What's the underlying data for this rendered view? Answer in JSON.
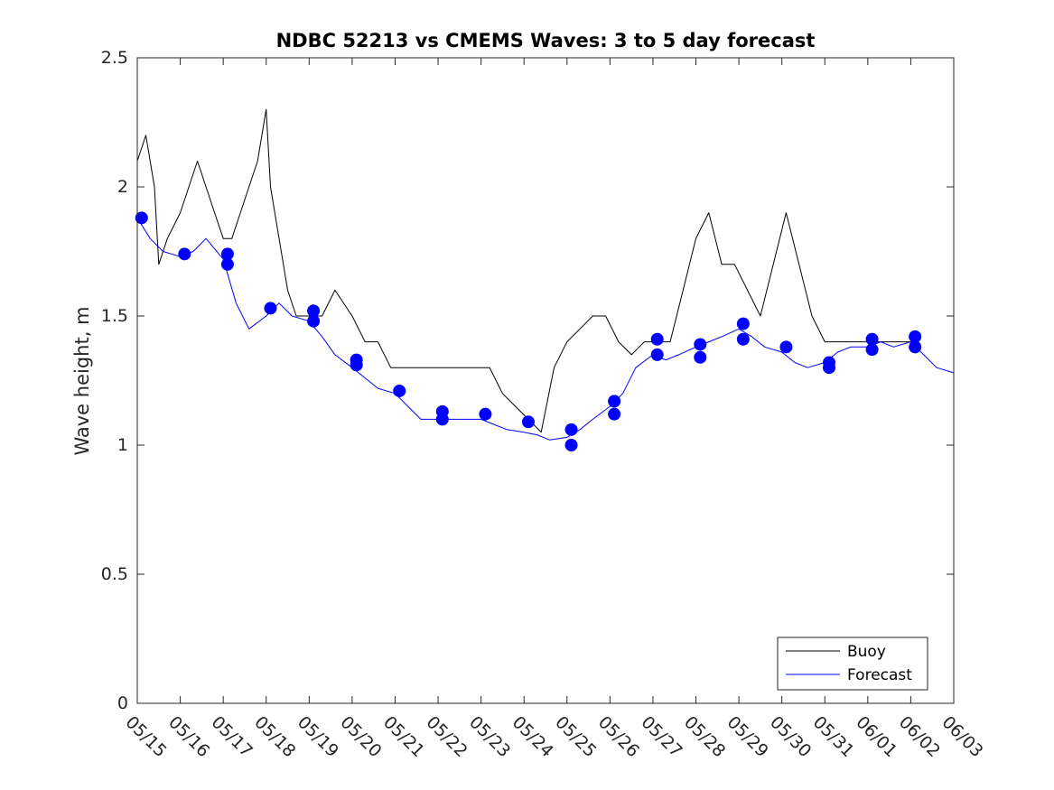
{
  "chart_data": {
    "type": "line",
    "title": "NDBC 52213 vs CMEMS Waves: 3 to 5 day forecast",
    "xlabel": "",
    "ylabel": "Wave height, m",
    "xlim": [
      0,
      19
    ],
    "ylim": [
      0,
      2.5
    ],
    "x_tick_labels": [
      "05/15",
      "05/16",
      "05/17",
      "05/18",
      "05/19",
      "05/20",
      "05/21",
      "05/22",
      "05/23",
      "05/24",
      "05/25",
      "05/26",
      "05/27",
      "05/28",
      "05/29",
      "05/30",
      "05/31",
      "06/01",
      "06/02",
      "06/03"
    ],
    "y_tick_labels": [
      "0",
      "0.5",
      "1",
      "1.5",
      "2",
      "2.5"
    ],
    "y_ticks": [
      0,
      0.5,
      1,
      1.5,
      2,
      2.5
    ],
    "grid": false,
    "legend": {
      "placement": "bottom-right",
      "entries": [
        {
          "label": "Buoy",
          "color": "#000000"
        },
        {
          "label": "Forecast",
          "color": "#0000ff"
        }
      ]
    },
    "series": [
      {
        "name": "Buoy",
        "color": "#000000",
        "x": [
          0,
          0.2,
          0.4,
          0.5,
          0.7,
          1.0,
          1.2,
          1.4,
          1.6,
          1.8,
          2.0,
          2.2,
          2.4,
          2.6,
          2.8,
          3.0,
          3.1,
          3.3,
          3.5,
          3.7,
          3.9,
          4.0,
          4.3,
          4.6,
          5.0,
          5.3,
          5.6,
          5.9,
          6.1,
          6.4,
          6.7,
          7.0,
          7.3,
          7.6,
          7.9,
          8.2,
          8.5,
          8.8,
          9.1,
          9.4,
          9.7,
          10.0,
          10.3,
          10.6,
          10.9,
          11.2,
          11.5,
          11.8,
          12.1,
          12.4,
          12.7,
          13.0,
          13.3,
          13.6,
          13.9,
          14.2,
          14.5,
          14.8,
          15.1,
          15.4,
          15.7,
          16.0,
          16.3,
          16.6,
          16.9,
          17.2,
          17.5,
          17.8,
          18.1
        ],
        "y": [
          2.1,
          2.2,
          2.0,
          1.7,
          1.8,
          1.9,
          2.0,
          2.1,
          2.0,
          1.9,
          1.8,
          1.8,
          1.9,
          2.0,
          2.1,
          2.3,
          2.0,
          1.8,
          1.6,
          1.5,
          1.5,
          1.5,
          1.5,
          1.6,
          1.5,
          1.4,
          1.4,
          1.3,
          1.3,
          1.3,
          1.3,
          1.3,
          1.3,
          1.3,
          1.3,
          1.3,
          1.2,
          1.15,
          1.1,
          1.05,
          1.3,
          1.4,
          1.45,
          1.5,
          1.5,
          1.4,
          1.35,
          1.4,
          1.4,
          1.4,
          1.6,
          1.8,
          1.9,
          1.7,
          1.7,
          1.6,
          1.5,
          1.7,
          1.9,
          1.7,
          1.5,
          1.4,
          1.4,
          1.4,
          1.4,
          1.4,
          1.4,
          1.4,
          1.4
        ]
      },
      {
        "name": "Forecast",
        "color": "#0000ff",
        "x": [
          0,
          0.3,
          0.6,
          1.0,
          1.3,
          1.6,
          2.0,
          2.3,
          2.6,
          3.0,
          3.3,
          3.6,
          4.0,
          4.3,
          4.6,
          5.0,
          5.3,
          5.6,
          6.0,
          6.3,
          6.6,
          7.0,
          7.3,
          7.6,
          8.0,
          8.3,
          8.6,
          9.0,
          9.3,
          9.6,
          10.0,
          10.3,
          10.6,
          11.0,
          11.3,
          11.6,
          12.0,
          12.3,
          12.6,
          13.0,
          13.3,
          13.6,
          14.0,
          14.3,
          14.6,
          15.0,
          15.3,
          15.6,
          16.0,
          16.3,
          16.6,
          17.0,
          17.3,
          17.6,
          18.0,
          18.3,
          18.6,
          19.0
        ],
        "y": [
          1.88,
          1.8,
          1.75,
          1.73,
          1.75,
          1.8,
          1.72,
          1.55,
          1.45,
          1.5,
          1.55,
          1.5,
          1.48,
          1.42,
          1.35,
          1.3,
          1.26,
          1.22,
          1.2,
          1.15,
          1.1,
          1.1,
          1.1,
          1.1,
          1.1,
          1.08,
          1.06,
          1.05,
          1.04,
          1.02,
          1.03,
          1.06,
          1.1,
          1.15,
          1.2,
          1.3,
          1.35,
          1.33,
          1.35,
          1.38,
          1.4,
          1.42,
          1.45,
          1.42,
          1.38,
          1.36,
          1.32,
          1.3,
          1.32,
          1.36,
          1.38,
          1.38,
          1.4,
          1.38,
          1.4,
          1.35,
          1.3,
          1.28
        ]
      }
    ],
    "markers": {
      "color": "#0000ff",
      "x": [
        0.1,
        1.1,
        2.1,
        2.1,
        3.1,
        4.1,
        4.1,
        5.1,
        5.1,
        6.1,
        7.1,
        7.1,
        8.1,
        9.1,
        10.1,
        10.1,
        11.1,
        11.1,
        12.1,
        12.1,
        13.1,
        13.1,
        14.1,
        14.1,
        15.1,
        16.1,
        16.1,
        17.1,
        17.1,
        18.1,
        18.1
      ],
      "y": [
        1.88,
        1.74,
        1.74,
        1.7,
        1.53,
        1.52,
        1.48,
        1.33,
        1.31,
        1.21,
        1.13,
        1.1,
        1.12,
        1.09,
        1.06,
        1.0,
        1.17,
        1.12,
        1.41,
        1.35,
        1.39,
        1.34,
        1.47,
        1.41,
        1.38,
        1.32,
        1.3,
        1.41,
        1.37,
        1.42,
        1.38
      ]
    }
  }
}
